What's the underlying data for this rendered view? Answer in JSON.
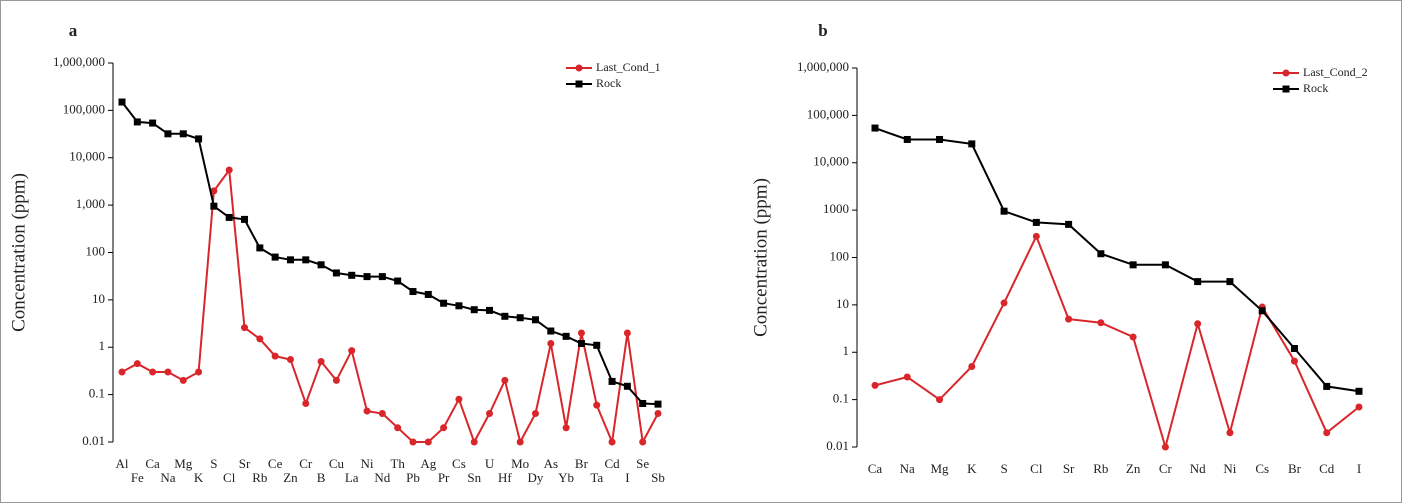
{
  "chart_data": [
    {
      "type": "line",
      "title": "a",
      "ylabel": "Concentration (ppm)",
      "log_y": true,
      "legend": "top-right",
      "categories": [
        "Al",
        "Fe",
        "Ca",
        "Na",
        "Mg",
        "K",
        "S",
        "Cl",
        "Sr",
        "Rb",
        "Ce",
        "Zn",
        "Cr",
        "B",
        "Cu",
        "La",
        "Ni",
        "Nd",
        "Th",
        "Pb",
        "Ag",
        "Pr",
        "Cs",
        "Sn",
        "U",
        "Hf",
        "Mo",
        "Dy",
        "As",
        "Yb",
        "Br",
        "Ta",
        "Cd",
        "I",
        "Se",
        "Sb"
      ],
      "series": [
        {
          "name": "Last_Cond_1",
          "color": "#d9262b",
          "marker": "circle",
          "values": [
            0.3,
            0.45,
            0.3,
            0.3,
            0.2,
            0.3,
            2000,
            5500,
            2.6,
            1.5,
            0.65,
            0.55,
            0.065,
            0.5,
            0.2,
            0.85,
            0.045,
            0.04,
            0.02,
            0.01,
            0.01,
            0.02,
            0.08,
            0.01,
            0.04,
            0.2,
            0.01,
            0.04,
            1.2,
            0.02,
            2,
            0.06,
            0.01,
            2,
            0.01,
            0.04
          ]
        },
        {
          "name": "Rock",
          "color": "#000000",
          "marker": "square",
          "values": [
            150000,
            57000,
            54000,
            32000,
            32000,
            25000,
            950,
            550,
            500,
            125,
            80,
            70,
            70,
            55,
            37,
            33,
            31,
            31,
            25,
            15,
            13,
            8.5,
            7.5,
            6.2,
            6,
            4.5,
            4.2,
            3.8,
            2.2,
            1.7,
            1.2,
            1.1,
            0.19,
            0.15,
            0.065,
            0.063
          ]
        }
      ],
      "ylim": [
        0.01,
        1000000
      ],
      "yticks": [
        0.01,
        0.1,
        1,
        10,
        100,
        {
          "value": 1000,
          "label": "1,000"
        },
        {
          "value": 10000,
          "label": "10,000"
        },
        {
          "value": 100000,
          "label": "100,000"
        },
        {
          "value": 1000000,
          "label": "1,000,000"
        }
      ]
    },
    {
      "type": "line",
      "title": "b",
      "ylabel": "Concentration (ppm)",
      "log_y": true,
      "legend": "top-right",
      "categories": [
        "Ca",
        "Na",
        "Mg",
        "K",
        "S",
        "Cl",
        "Sr",
        "Rb",
        "Zn",
        "Cr",
        "Nd",
        "Ni",
        "Cs",
        "Br",
        "Cd",
        "I"
      ],
      "series": [
        {
          "name": "Last_Cond_2",
          "color": "#d9262b",
          "marker": "circle",
          "values": [
            0.2,
            0.3,
            0.1,
            0.5,
            11,
            280,
            5,
            4.2,
            2.1,
            0.01,
            4,
            0.02,
            9,
            0.65,
            0.02,
            0.07
          ]
        },
        {
          "name": "Rock",
          "color": "#000000",
          "marker": "square",
          "values": [
            54000,
            31000,
            31000,
            25000,
            950,
            550,
            500,
            120,
            70,
            70,
            31,
            31,
            7.5,
            1.2,
            0.19,
            0.15
          ]
        }
      ],
      "ylim": [
        0.01,
        1000000
      ],
      "yticks": [
        0.01,
        0.1,
        1,
        10,
        100,
        1000,
        {
          "value": 10000,
          "label": "10,000"
        },
        {
          "value": 100000,
          "label": "100,000"
        },
        {
          "value": 1000000,
          "label": "1,000,000"
        }
      ]
    }
  ]
}
